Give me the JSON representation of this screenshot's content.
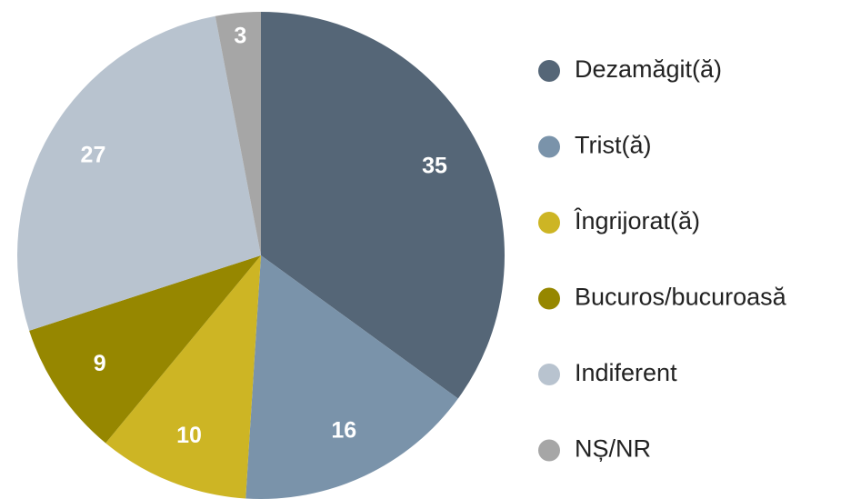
{
  "chart_data": {
    "type": "pie",
    "categories": [
      "Dezamăgit(ă)",
      "Trist(ă)",
      "Îngrijorat(ă)",
      "Bucuros/bucuroasă",
      "Indiferent",
      "NȘ/NR"
    ],
    "values": [
      35,
      16,
      10,
      9,
      27,
      3
    ],
    "colors": [
      "#556677",
      "#7a93aa",
      "#cdb524",
      "#968700",
      "#b8c3cf",
      "#a6a6a6"
    ],
    "legend": "right"
  }
}
